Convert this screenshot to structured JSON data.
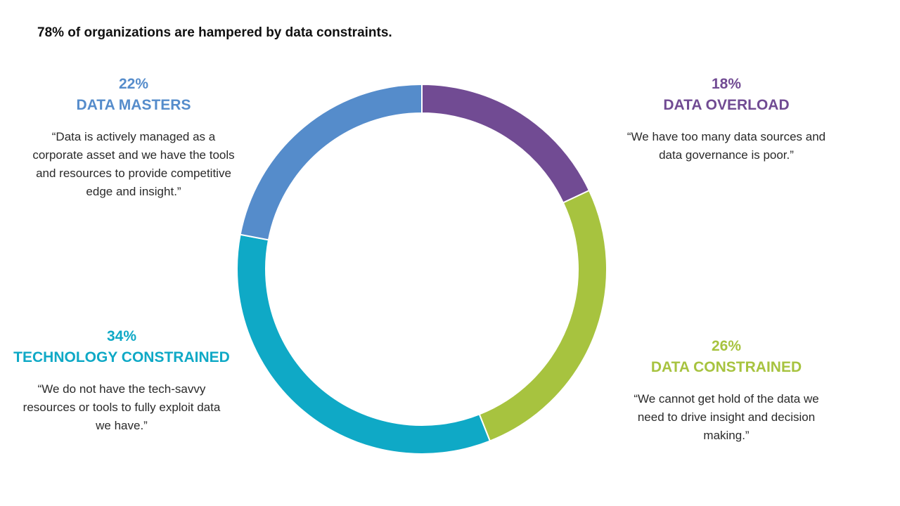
{
  "chart_data": {
    "type": "pie",
    "title": "78% of organizations are hampered by data constraints.",
    "segments": [
      {
        "key": "overload",
        "percent_label": "18%",
        "value": 18,
        "name": "DATA OVERLOAD",
        "quote": "“We have too many data sources and data governance is poor.”",
        "color": "#714b93"
      },
      {
        "key": "constrained",
        "percent_label": "26%",
        "value": 26,
        "name": "DATA CONSTRAINED",
        "quote": "“We cannot get hold of the data we need to drive insight and decision making.”",
        "color": "#a7c33f"
      },
      {
        "key": "technology",
        "percent_label": "34%",
        "value": 34,
        "name": "TECHNOLOGY CONSTRAINED",
        "quote": "“We do not have the tech-savvy resources or tools to fully exploit data we have.”",
        "color": "#0fa9c6"
      },
      {
        "key": "masters",
        "percent_label": "22%",
        "value": 22,
        "name": "DATA MASTERS",
        "quote": "“Data is actively managed as a corporate asset and we have the tools and resources to provide competitive edge and insight.”",
        "color": "#558ccb"
      }
    ]
  }
}
